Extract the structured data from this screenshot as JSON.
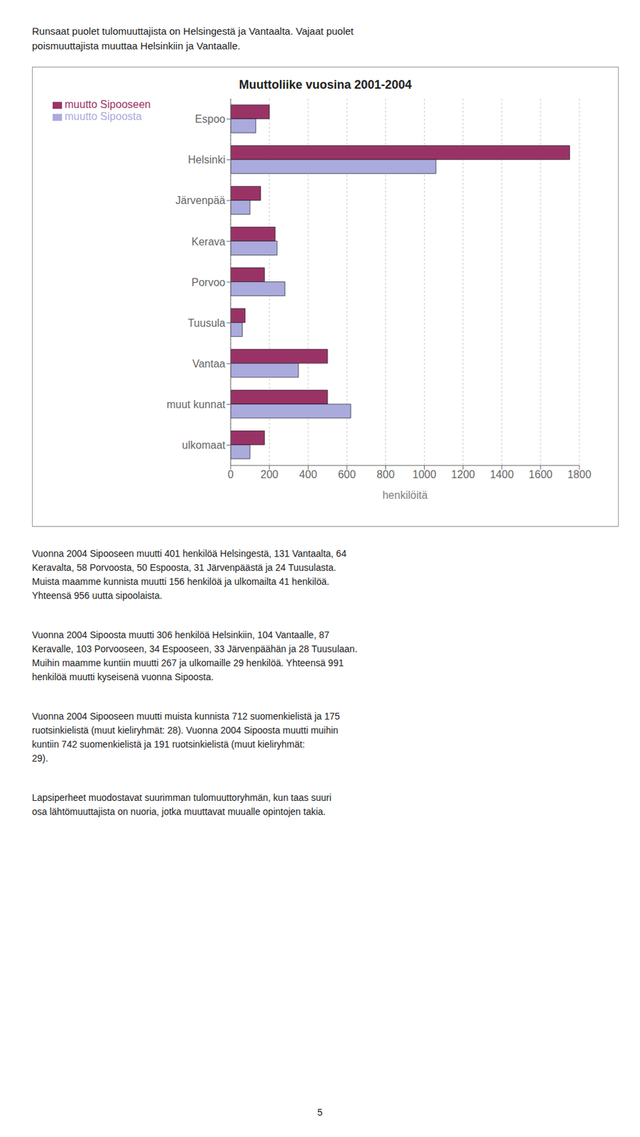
{
  "chart_data": {
    "type": "bar",
    "orientation": "horizontal",
    "title": "Muuttoliike vuosina 2001-2004",
    "categories": [
      "ulkomaat",
      "muut kunnat",
      "Vantaa",
      "Tuusula",
      "Porvoo",
      "Kerava",
      "Järvenpää",
      "Helsinki",
      "Espoo"
    ],
    "series": [
      {
        "name": "muutto Sipooseen",
        "color": "#993366",
        "values": [
          175,
          500,
          500,
          75,
          175,
          230,
          155,
          1750,
          200
        ]
      },
      {
        "name": "muutto Sipoosta",
        "color": "#aaaadd",
        "values": [
          100,
          620,
          350,
          60,
          280,
          240,
          100,
          1060,
          130
        ]
      }
    ],
    "xlabel": "henkilöitä",
    "xlim": [
      0,
      1800
    ],
    "xticks": [
      0,
      200,
      400,
      600,
      800,
      1000,
      1200,
      1400,
      1600,
      1800
    ],
    "grid": true,
    "legend": "upper left",
    "annotations": [
      "Runsaat puolet tulomuuttajista on Helsingestä ja Vantaalta. Vajaat puolet",
      "poismuuttajista muuttaa Helsinkiin ja Vantaalle.",
      "Vuonna 2004 Sipooseen muutti 401 henkilöä Helsingestä, 131 Vantaalta, 64\nKeravalta, 58 Porvoosta, 50 Espoosta, 31 Järvenpäästä ja 24 Tuusulasta.\nMuista maamme kunnista muutti 156 henkilöä ja ulkomailta 41 henkilöä.\nYhteensä 956 uutta sipoolaista.",
      "Vuonna 2004 Sipoosta muutti 306 henkilöä Helsinkiin, 104 Vantaalle, 87\nKeravalle, 103 Porvooseen, 34 Espooseen, 33 Järvenpäähän ja 28 Tuusulaan.\nMuihin maamme kuntiin muutti 267 ja ulkomaille 29 henkilöä. Yhteensä 991\nhenkilöä muutti kyseisenä vuonna Sipoosta.",
      "Vuonna 2004 Sipooseen muutti muista kunnista 712 suomenkielistä ja 175\nruotsinkielistä (muut kieliryhmät: 28). Vuonna 2004 Sipoosta muutti muihin\nkuntiin 742 suomenkielistä ja 191 ruotsinkielistä (muut kieliryhmät:\n29).",
      "Lapsiperheet muodostavat suurimman tulomuuttoryhmän, kun taas suuri\nosa lähtömuuttajista on nuoria, jotka muuttavat muualle opintojen takia.",
      "5"
    ]
  }
}
